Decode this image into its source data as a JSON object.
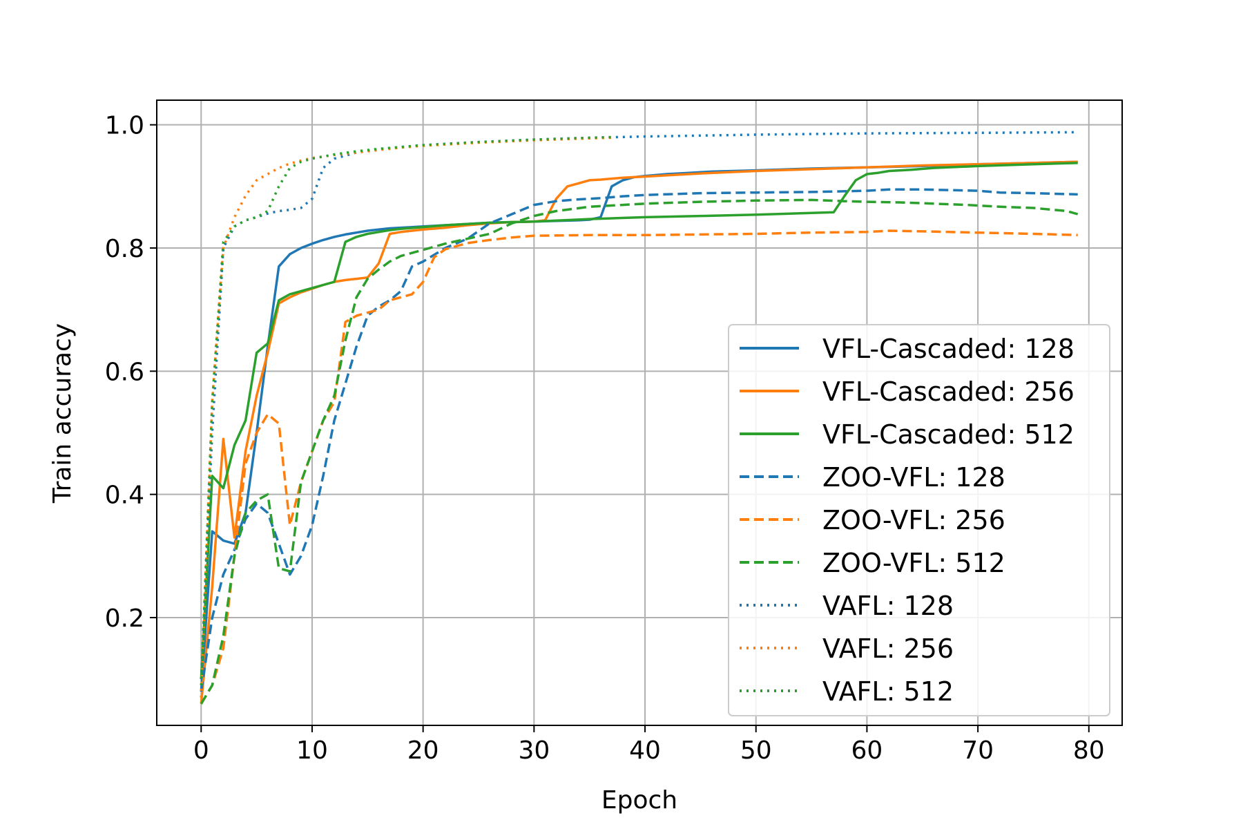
{
  "chart_data": {
    "type": "line",
    "title": "",
    "xlabel": "Epoch",
    "ylabel": "Train accuracy",
    "xlim": [
      -4,
      83
    ],
    "ylim": [
      0.025,
      1.04
    ],
    "xticks": [
      0,
      10,
      20,
      30,
      40,
      50,
      60,
      70,
      80
    ],
    "yticks": [
      0.2,
      0.4,
      0.6,
      0.8,
      1.0
    ],
    "xtick_labels": [
      "0",
      "10",
      "20",
      "30",
      "40",
      "50",
      "60",
      "70",
      "80"
    ],
    "ytick_labels": [
      "0.2",
      "0.4",
      "0.6",
      "0.8",
      "1.0"
    ],
    "grid": true,
    "legend_position": "center-right",
    "series": [
      {
        "name": "VFL-Cascaded: 128",
        "color": "#1f77b4",
        "style": "solid",
        "x": [
          0,
          1,
          2,
          3,
          4,
          5,
          6,
          7,
          8,
          9,
          10,
          11,
          12,
          13,
          14,
          15,
          16,
          17,
          18,
          19,
          20,
          22,
          24,
          26,
          28,
          30,
          32,
          34,
          35,
          36,
          37,
          38,
          39,
          40,
          42,
          44,
          46,
          50,
          55,
          60,
          65,
          70,
          75,
          79
        ],
        "y": [
          0.08,
          0.34,
          0.325,
          0.32,
          0.37,
          0.5,
          0.64,
          0.77,
          0.79,
          0.8,
          0.807,
          0.813,
          0.818,
          0.822,
          0.825,
          0.828,
          0.83,
          0.832,
          0.833,
          0.834,
          0.835,
          0.837,
          0.839,
          0.841,
          0.842,
          0.843,
          0.844,
          0.845,
          0.846,
          0.85,
          0.9,
          0.91,
          0.915,
          0.917,
          0.92,
          0.922,
          0.924,
          0.926,
          0.929,
          0.931,
          0.933,
          0.936,
          0.938,
          0.94
        ]
      },
      {
        "name": "VFL-Cascaded: 256",
        "color": "#ff7f0e",
        "style": "solid",
        "x": [
          0,
          1,
          2,
          3,
          4,
          5,
          6,
          7,
          8,
          9,
          10,
          11,
          12,
          13,
          14,
          15,
          16,
          17,
          18,
          19,
          20,
          22,
          24,
          26,
          28,
          30,
          31,
          32,
          33,
          34,
          35,
          36,
          38,
          40,
          42,
          45,
          50,
          55,
          60,
          65,
          70,
          75,
          79
        ],
        "y": [
          0.06,
          0.25,
          0.49,
          0.33,
          0.47,
          0.56,
          0.63,
          0.71,
          0.72,
          0.728,
          0.734,
          0.74,
          0.745,
          0.748,
          0.75,
          0.752,
          0.775,
          0.823,
          0.826,
          0.828,
          0.83,
          0.833,
          0.837,
          0.84,
          0.842,
          0.843,
          0.845,
          0.88,
          0.9,
          0.905,
          0.91,
          0.911,
          0.914,
          0.916,
          0.918,
          0.921,
          0.925,
          0.928,
          0.931,
          0.934,
          0.936,
          0.938,
          0.94
        ]
      },
      {
        "name": "VFL-Cascaded: 512",
        "color": "#2ca02c",
        "style": "solid",
        "x": [
          0,
          1,
          2,
          3,
          4,
          5,
          6,
          7,
          8,
          9,
          10,
          11,
          12,
          13,
          14,
          15,
          16,
          17,
          18,
          20,
          22,
          24,
          26,
          28,
          30,
          35,
          40,
          45,
          50,
          55,
          57,
          58,
          59,
          60,
          61,
          62,
          64,
          66,
          70,
          75,
          79
        ],
        "y": [
          0.1,
          0.43,
          0.41,
          0.48,
          0.52,
          0.63,
          0.645,
          0.715,
          0.725,
          0.73,
          0.735,
          0.74,
          0.745,
          0.81,
          0.818,
          0.823,
          0.826,
          0.829,
          0.831,
          0.834,
          0.837,
          0.839,
          0.841,
          0.842,
          0.843,
          0.847,
          0.85,
          0.852,
          0.854,
          0.857,
          0.858,
          0.885,
          0.91,
          0.92,
          0.922,
          0.925,
          0.927,
          0.93,
          0.933,
          0.936,
          0.938
        ]
      },
      {
        "name": "ZOO-VFL: 128",
        "color": "#1f77b4",
        "style": "dashed",
        "x": [
          0,
          1,
          2,
          3,
          4,
          5,
          6,
          7,
          8,
          9,
          10,
          11,
          12,
          13,
          14,
          15,
          16,
          17,
          18,
          19,
          20,
          22,
          24,
          26,
          28,
          30,
          32,
          34,
          36,
          38,
          40,
          45,
          50,
          55,
          60,
          62,
          65,
          70,
          72,
          75,
          79
        ],
        "y": [
          0.08,
          0.2,
          0.27,
          0.31,
          0.36,
          0.385,
          0.37,
          0.32,
          0.27,
          0.3,
          0.35,
          0.43,
          0.52,
          0.58,
          0.64,
          0.69,
          0.705,
          0.715,
          0.73,
          0.77,
          0.778,
          0.8,
          0.815,
          0.84,
          0.855,
          0.87,
          0.876,
          0.879,
          0.881,
          0.884,
          0.886,
          0.889,
          0.89,
          0.891,
          0.893,
          0.895,
          0.895,
          0.893,
          0.89,
          0.889,
          0.887
        ]
      },
      {
        "name": "ZOO-VFL: 256",
        "color": "#ff7f0e",
        "style": "dashed",
        "x": [
          0,
          1,
          2,
          3,
          4,
          5,
          6,
          7,
          8,
          9,
          10,
          11,
          12,
          13,
          14,
          15,
          16,
          17,
          18,
          19,
          20,
          21,
          22,
          24,
          26,
          28,
          30,
          35,
          40,
          45,
          50,
          55,
          60,
          62,
          65,
          70,
          75,
          79
        ],
        "y": [
          0.06,
          0.09,
          0.15,
          0.3,
          0.45,
          0.5,
          0.53,
          0.515,
          0.35,
          0.42,
          0.47,
          0.52,
          0.55,
          0.68,
          0.69,
          0.695,
          0.7,
          0.715,
          0.72,
          0.725,
          0.745,
          0.785,
          0.798,
          0.808,
          0.813,
          0.817,
          0.82,
          0.821,
          0.821,
          0.822,
          0.823,
          0.825,
          0.826,
          0.828,
          0.827,
          0.825,
          0.823,
          0.821
        ]
      },
      {
        "name": "ZOO-VFL: 512",
        "color": "#2ca02c",
        "style": "dashed",
        "x": [
          0,
          1,
          2,
          3,
          4,
          5,
          6,
          7,
          8,
          9,
          10,
          11,
          12,
          13,
          14,
          15,
          16,
          17,
          18,
          20,
          22,
          24,
          26,
          28,
          30,
          32,
          35,
          40,
          45,
          50,
          55,
          58,
          60,
          63,
          66,
          69,
          72,
          75,
          78,
          79
        ],
        "y": [
          0.06,
          0.09,
          0.17,
          0.3,
          0.37,
          0.39,
          0.4,
          0.28,
          0.275,
          0.42,
          0.47,
          0.52,
          0.56,
          0.65,
          0.72,
          0.75,
          0.765,
          0.778,
          0.787,
          0.797,
          0.807,
          0.815,
          0.823,
          0.84,
          0.852,
          0.86,
          0.867,
          0.872,
          0.875,
          0.877,
          0.878,
          0.876,
          0.875,
          0.874,
          0.872,
          0.87,
          0.867,
          0.865,
          0.86,
          0.855
        ]
      },
      {
        "name": "VAFL: 128",
        "color": "#1f77b4",
        "style": "dotted",
        "x": [
          0,
          1,
          2,
          3,
          4,
          5,
          6,
          7,
          8,
          9,
          10,
          11,
          12,
          14,
          16,
          18,
          20,
          25,
          30,
          35,
          40,
          50,
          60,
          70,
          79
        ],
        "y": [
          0.1,
          0.5,
          0.8,
          0.835,
          0.845,
          0.85,
          0.856,
          0.86,
          0.862,
          0.865,
          0.88,
          0.93,
          0.945,
          0.955,
          0.96,
          0.964,
          0.967,
          0.972,
          0.976,
          0.979,
          0.981,
          0.984,
          0.986,
          0.987,
          0.988
        ]
      },
      {
        "name": "VAFL: 256",
        "color": "#ff7f0e",
        "style": "dotted",
        "x": [
          0,
          1,
          2,
          3,
          4,
          5,
          6,
          7,
          8,
          9,
          10,
          12,
          14,
          16,
          18,
          20,
          25,
          30,
          35,
          37
        ],
        "y": [
          0.07,
          0.55,
          0.8,
          0.85,
          0.885,
          0.91,
          0.92,
          0.93,
          0.937,
          0.942,
          0.946,
          0.951,
          0.955,
          0.959,
          0.963,
          0.966,
          0.971,
          0.975,
          0.978,
          0.979
        ]
      },
      {
        "name": "VAFL: 512",
        "color": "#2ca02c",
        "style": "dotted",
        "x": [
          0,
          1,
          2,
          3,
          4,
          5,
          6,
          7,
          8,
          9,
          10,
          12,
          14,
          16,
          18,
          20,
          25,
          30,
          35,
          37
        ],
        "y": [
          0.09,
          0.55,
          0.81,
          0.835,
          0.845,
          0.85,
          0.86,
          0.9,
          0.93,
          0.94,
          0.945,
          0.952,
          0.957,
          0.961,
          0.964,
          0.967,
          0.972,
          0.976,
          0.979,
          0.98
        ]
      }
    ]
  }
}
